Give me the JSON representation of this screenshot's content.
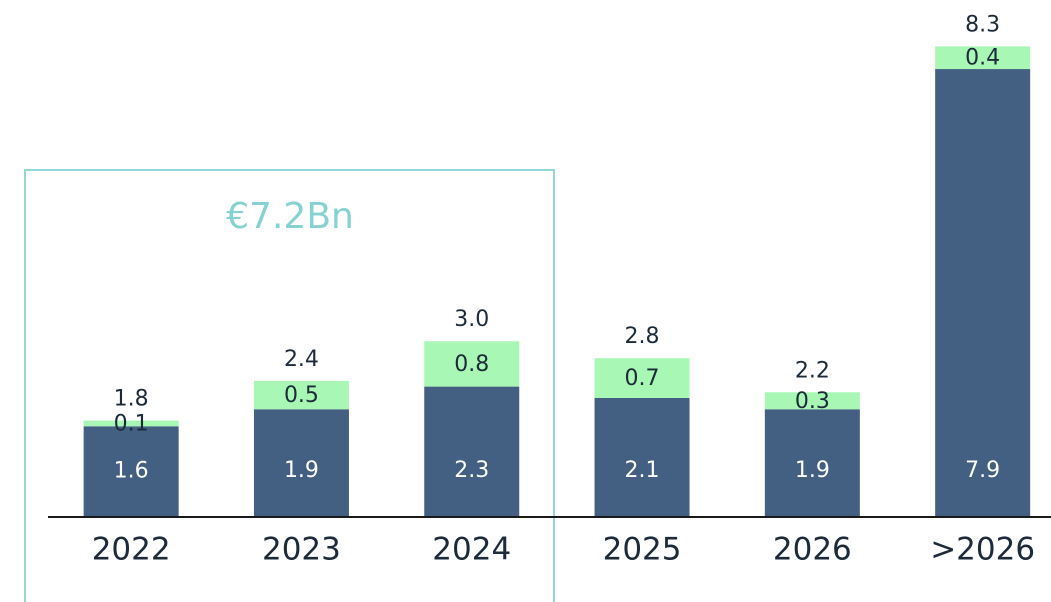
{
  "chart_data": {
    "type": "stacked_bar",
    "categories": [
      "2022",
      "2023",
      "2024",
      "2025",
      "2026",
      ">2026"
    ],
    "series": [
      {
        "color": "#435f81",
        "values": [
          1.6,
          1.9,
          2.3,
          2.1,
          1.9,
          7.9
        ]
      },
      {
        "color": "#a9f7b5",
        "values": [
          0.1,
          0.5,
          0.8,
          0.7,
          0.3,
          0.4
        ]
      }
    ],
    "totals": [
      1.8,
      2.4,
      3.0,
      2.8,
      2.2,
      8.3
    ],
    "totals_labels": [
      "1.8",
      "2.4",
      "3.0",
      "2.8",
      "2.2",
      "8.3"
    ],
    "annotation": "€7.2Bn",
    "ylim": [
      0,
      9.1
    ]
  }
}
